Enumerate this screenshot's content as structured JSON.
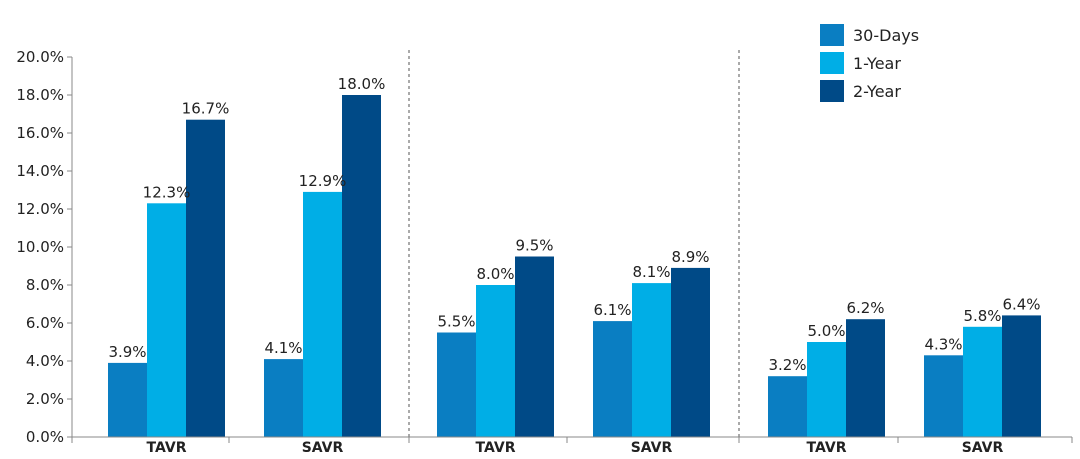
{
  "chart_data": {
    "type": "bar",
    "groups": [
      "TAVR",
      "SAVR",
      "TAVR",
      "SAVR",
      "TAVR",
      "SAVR"
    ],
    "panels": 3,
    "series": [
      {
        "name": "30-Days",
        "color": "#0a7ec2",
        "values": [
          3.9,
          4.1,
          5.5,
          6.1,
          3.2,
          4.3
        ]
      },
      {
        "name": "1-Year",
        "color": "#00aee6",
        "values": [
          12.3,
          12.9,
          8.0,
          8.1,
          5.0,
          5.8
        ]
      },
      {
        "name": "2-Year",
        "color": "#004a87",
        "values": [
          16.7,
          18.0,
          9.5,
          8.9,
          6.2,
          6.4
        ]
      }
    ],
    "ylim": [
      0,
      20
    ],
    "yticks": [
      "0.0%",
      "2.0%",
      "4.0%",
      "6.0%",
      "8.0%",
      "10.0%",
      "12.0%",
      "14.0%",
      "16.0%",
      "18.0%",
      "20.0%"
    ],
    "value_suffix": "%",
    "legend_position": "top-right",
    "grid": false,
    "panel_separators": "dashed"
  }
}
